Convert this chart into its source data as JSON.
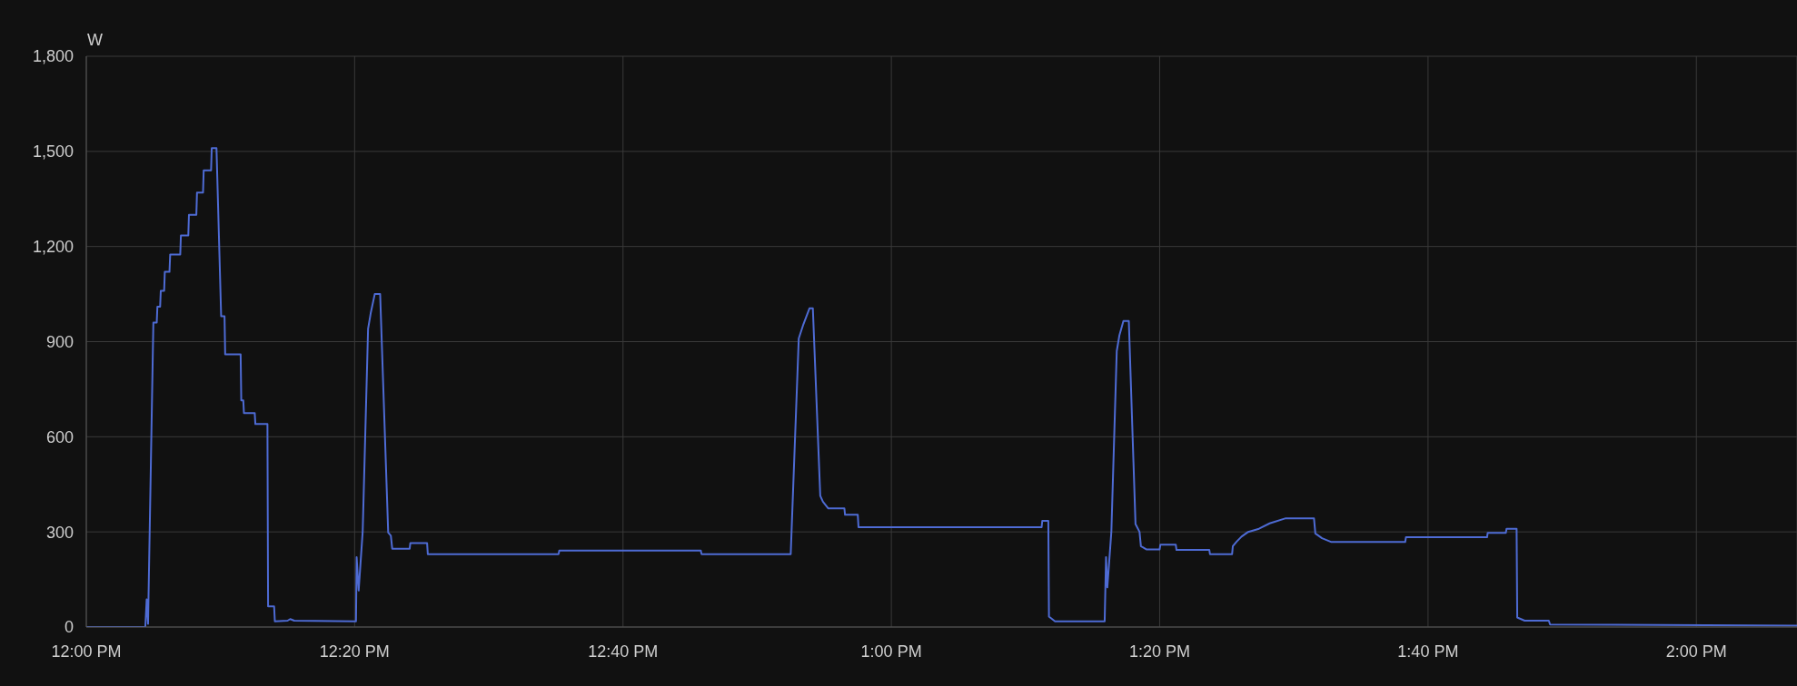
{
  "chart_data": {
    "type": "line",
    "ylabel": "W",
    "x": [
      12.0,
      12.0733,
      12.075,
      12.0767,
      12.0833,
      12.0875,
      12.0883,
      12.0917,
      12.0925,
      12.0967,
      12.0975,
      12.1033,
      12.1042,
      12.1167,
      12.1175,
      12.1267,
      12.1275,
      12.1367,
      12.1375,
      12.145,
      12.1458,
      12.155,
      12.1558,
      12.1617,
      12.1675,
      12.1717,
      12.1725,
      12.1917,
      12.1925,
      12.195,
      12.1958,
      12.2092,
      12.21,
      12.225,
      12.2258,
      12.2333,
      12.2342,
      12.25,
      12.2533,
      12.2583,
      12.335,
      12.3358,
      12.3383,
      12.3433,
      12.35,
      12.3533,
      12.3583,
      12.365,
      12.375,
      12.3783,
      12.38,
      12.4017,
      12.4025,
      12.4233,
      12.4242,
      12.5867,
      12.5875,
      12.7633,
      12.7642,
      12.875,
      12.885,
      12.8908,
      12.8983,
      12.9025,
      12.9117,
      12.915,
      12.9217,
      12.9417,
      12.9425,
      12.9583,
      12.9592,
      13.1867,
      13.1875,
      13.195,
      13.1958,
      13.2033,
      13.265,
      13.2667,
      13.2683,
      13.2733,
      13.28,
      13.2833,
      13.2883,
      13.295,
      13.3033,
      13.3083,
      13.31,
      13.3167,
      13.3333,
      13.3342,
      13.3533,
      13.3542,
      13.395,
      13.3958,
      13.4233,
      13.4242,
      13.4292,
      13.435,
      13.4433,
      13.4567,
      13.47,
      13.49,
      13.525,
      13.5267,
      13.535,
      13.5467,
      13.6383,
      13.6392,
      13.74,
      13.7408,
      13.7633,
      13.7642,
      13.7767,
      13.7775,
      13.7867,
      13.8167,
      13.8183,
      14.125
    ],
    "series": [
      {
        "color": "#4e6bd4",
        "values": [
          0,
          0,
          87,
          10,
          960,
          960,
          1010,
          1010,
          1060,
          1060,
          1120,
          1120,
          1175,
          1175,
          1235,
          1235,
          1300,
          1300,
          1370,
          1370,
          1440,
          1440,
          1510,
          1510,
          980,
          980,
          860,
          860,
          715,
          715,
          675,
          675,
          640,
          640,
          65,
          65,
          18,
          20,
          25,
          20,
          18,
          220,
          115,
          300,
          940,
          990,
          1050,
          1050,
          298,
          288,
          247,
          247,
          265,
          265,
          230,
          230,
          241,
          241,
          230,
          230,
          910,
          955,
          1005,
          1005,
          414,
          395,
          374,
          374,
          354,
          354,
          315,
          315,
          335,
          335,
          33,
          18,
          18,
          220,
          125,
          300,
          870,
          920,
          965,
          965,
          325,
          300,
          255,
          245,
          245,
          260,
          260,
          243,
          243,
          230,
          230,
          255,
          270,
          285,
          300,
          310,
          327,
          343,
          343,
          295,
          280,
          268,
          268,
          283,
          283,
          297,
          297,
          310,
          310,
          30,
          20,
          20,
          8,
          4
        ]
      }
    ],
    "xlim": [
      12.0,
      14.125
    ],
    "xticks": [
      {
        "value": 12.0,
        "label": "12:00 PM"
      },
      {
        "value": 12.3333,
        "label": "12:20 PM"
      },
      {
        "value": 12.6667,
        "label": "12:40 PM"
      },
      {
        "value": 13.0,
        "label": "1:00 PM"
      },
      {
        "value": 13.3333,
        "label": "1:20 PM"
      },
      {
        "value": 13.6667,
        "label": "1:40 PM"
      },
      {
        "value": 14.0,
        "label": "2:00 PM"
      }
    ],
    "ylim": [
      0,
      1800
    ],
    "yticks": [
      0,
      300,
      600,
      900,
      {
        "value": 1200,
        "label": "1,200"
      },
      {
        "value": 1500,
        "label": "1,500"
      },
      {
        "value": 1800,
        "label": "1,800"
      }
    ],
    "grid": true,
    "marker": "none",
    "line_style": "solid",
    "legend": false
  }
}
